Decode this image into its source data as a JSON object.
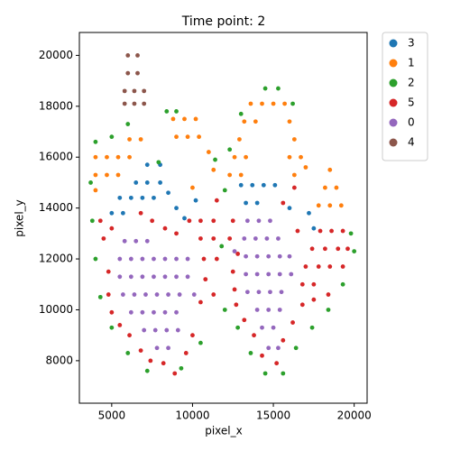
{
  "chart_data": {
    "type": "scatter",
    "title": "Time point: 2",
    "x_label": "pixel_x",
    "y_label": "pixel_y",
    "xlim": [
      3000,
      20800
    ],
    "ylim": [
      6330,
      20900
    ],
    "xticks": [
      5000,
      10000,
      15000,
      20000
    ],
    "yticks": [
      8000,
      10000,
      12000,
      14000,
      16000,
      18000,
      20000
    ],
    "legend": "outside upper right",
    "series": [
      {
        "name": "3",
        "color": "#1f77b4",
        "x": [
          7200,
          8000,
          6500,
          7200,
          8000,
          5500,
          6200,
          6900,
          7600,
          5000,
          5700,
          8500,
          9000,
          9500,
          10200,
          13000,
          13700,
          14400,
          15100,
          13300,
          14000,
          16000,
          17200,
          17500
        ],
        "y": [
          15700,
          15700,
          15000,
          15000,
          15000,
          14400,
          14400,
          14400,
          14400,
          13800,
          13800,
          14600,
          14000,
          13600,
          14300,
          14900,
          14900,
          14900,
          14900,
          14200,
          14200,
          14000,
          13800,
          13200
        ]
      },
      {
        "name": "1",
        "color": "#ff7f0e",
        "x": [
          4000,
          4700,
          5400,
          4000,
          4700,
          5400,
          6100,
          6800,
          6100,
          4000,
          8800,
          9500,
          10200,
          9000,
          9700,
          10400,
          11000,
          11300,
          10000,
          13600,
          14300,
          15000,
          15700,
          13200,
          13900,
          16000,
          12900,
          16300,
          12600,
          13300,
          16000,
          16700,
          12300,
          13000,
          16300,
          17000,
          18500,
          18200,
          18900,
          17800,
          18500,
          19200
        ],
        "y": [
          16000,
          16000,
          16000,
          15300,
          15300,
          15300,
          16700,
          16700,
          16000,
          14700,
          17500,
          17500,
          17500,
          16800,
          16800,
          16800,
          16200,
          15500,
          14800,
          18100,
          18100,
          18100,
          18100,
          17400,
          17400,
          17400,
          16700,
          16700,
          16000,
          16000,
          16000,
          16000,
          15300,
          15300,
          15300,
          15600,
          15500,
          14800,
          14800,
          14100,
          14100,
          14100
        ]
      },
      {
        "name": "2",
        "color": "#2ca02c",
        "x": [
          3700,
          4000,
          5000,
          6000,
          8400,
          9000,
          7900,
          11400,
          12300,
          13000,
          14500,
          15300,
          16200,
          12000,
          3800,
          4000,
          4300,
          5000,
          6000,
          7200,
          9300,
          10500,
          12000,
          12800,
          13600,
          14500,
          15600,
          16400,
          17400,
          18400,
          19300,
          20000,
          19800,
          11800
        ],
        "y": [
          15000,
          16600,
          16800,
          17300,
          17800,
          17800,
          15800,
          15900,
          16300,
          17700,
          18700,
          18700,
          18100,
          14700,
          13500,
          12000,
          10500,
          9300,
          8300,
          7600,
          7700,
          8700,
          10000,
          9300,
          8300,
          7500,
          7500,
          8500,
          9300,
          10000,
          11000,
          12300,
          13000,
          12500
        ]
      },
      {
        "name": "5",
        "color": "#d62728",
        "x": [
          4300,
          5000,
          4500,
          6800,
          7500,
          8300,
          9000,
          9800,
          10500,
          11300,
          10500,
          11300,
          10700,
          11500,
          10800,
          11300,
          10500,
          4800,
          4800,
          5000,
          5500,
          6100,
          6800,
          7400,
          8200,
          8900,
          9600,
          10000,
          12500,
          12300,
          12800,
          12500,
          12600,
          12700,
          13200,
          13800,
          14300,
          15200,
          15600,
          16200,
          16800,
          16800,
          17500,
          17000,
          17800,
          18500,
          19300,
          17400,
          18200,
          19000,
          19600,
          16500,
          17900,
          18600,
          19300,
          15600,
          16300,
          17500,
          18400,
          11500
        ],
        "y": [
          13500,
          13200,
          12800,
          13800,
          13500,
          13200,
          13000,
          13500,
          13500,
          13500,
          12800,
          12800,
          12000,
          12000,
          11200,
          10600,
          10300,
          11500,
          10600,
          9900,
          9400,
          9000,
          8400,
          8000,
          7900,
          7500,
          8300,
          9000,
          13500,
          12800,
          12200,
          11500,
          10800,
          10200,
          9600,
          9000,
          8200,
          7900,
          8800,
          9500,
          10200,
          11000,
          11000,
          11700,
          11700,
          11700,
          11700,
          12400,
          12400,
          12400,
          12400,
          13100,
          13100,
          13100,
          13100,
          14200,
          14800,
          10400,
          10600,
          14300
        ]
      },
      {
        "name": "0",
        "color": "#9467bd",
        "x": [
          5800,
          6500,
          7200,
          5500,
          6200,
          6900,
          7600,
          8300,
          9000,
          9700,
          5500,
          6200,
          6900,
          7600,
          8300,
          9000,
          9700,
          10100,
          5700,
          6400,
          7100,
          7800,
          8500,
          9200,
          6200,
          6900,
          7600,
          8300,
          9000,
          7000,
          7700,
          8400,
          9100,
          7800,
          8500,
          13400,
          14100,
          14800,
          13200,
          13900,
          14600,
          15300,
          13300,
          14000,
          14700,
          15400,
          16000,
          13300,
          14000,
          14700,
          15400,
          16100,
          13400,
          14100,
          14800,
          15500,
          14000,
          14700,
          15400,
          14300,
          15000,
          14700,
          15300,
          12600
        ],
        "y": [
          12700,
          12700,
          12700,
          12000,
          12000,
          12000,
          12000,
          12000,
          12000,
          12000,
          11300,
          11300,
          11300,
          11300,
          11300,
          11300,
          11300,
          10600,
          10600,
          10600,
          10600,
          10600,
          10600,
          10600,
          9900,
          9900,
          9900,
          9900,
          9900,
          9200,
          9200,
          9200,
          9200,
          8500,
          8500,
          13500,
          13500,
          13500,
          12800,
          12800,
          12800,
          12800,
          12100,
          12100,
          12100,
          12100,
          12100,
          11400,
          11400,
          11400,
          11400,
          11400,
          10700,
          10700,
          10700,
          10700,
          10000,
          10000,
          10000,
          9300,
          9300,
          8500,
          8500,
          12300
        ]
      },
      {
        "name": "4",
        "color": "#8c564b",
        "x": [
          6000,
          6600,
          6000,
          6600,
          5800,
          6400,
          7000,
          5800,
          6400,
          7000
        ],
        "y": [
          20000,
          20000,
          19300,
          19300,
          18600,
          18600,
          18600,
          18100,
          18100,
          18100
        ]
      }
    ]
  }
}
